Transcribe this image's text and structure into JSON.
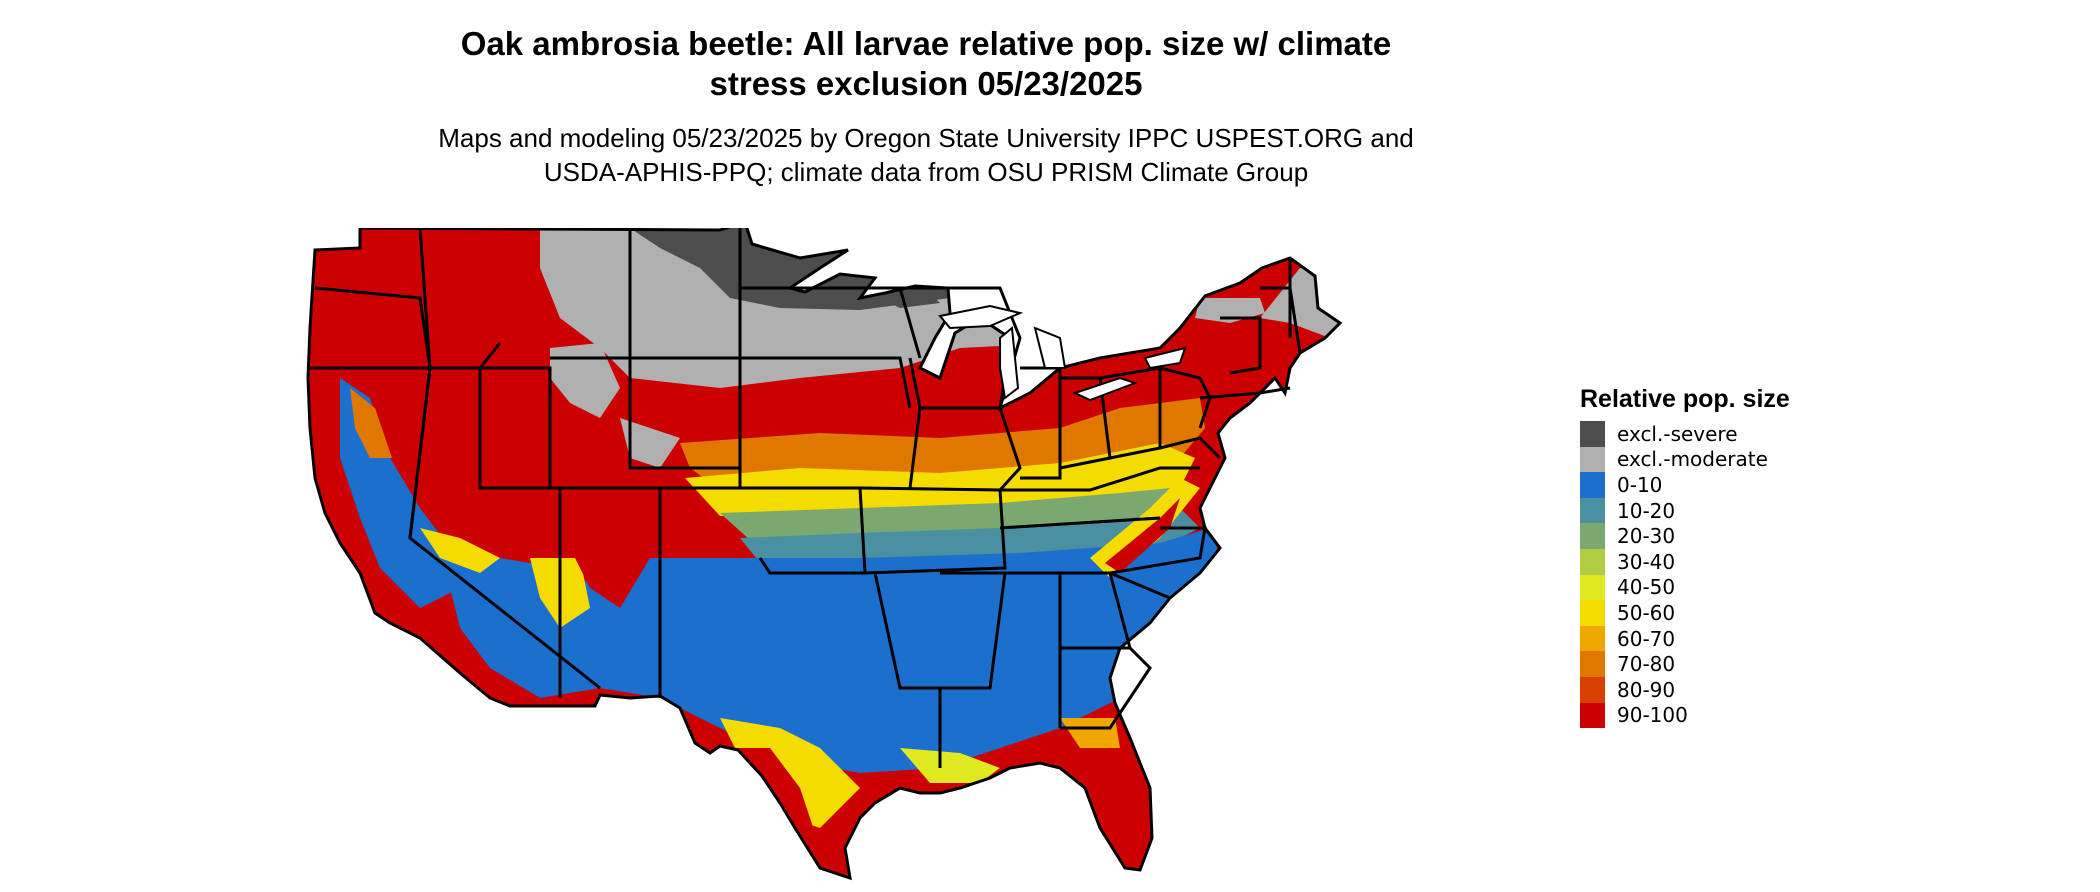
{
  "title_lines": [
    "Oak ambrosia beetle: All larvae relative pop. size w/ climate",
    "stress exclusion 05/23/2025"
  ],
  "subtitle_lines": [
    "Maps and modeling 05/23/2025 by Oregon State University IPPC USPEST.ORG and",
    "USDA-APHIS-PPQ; climate data from OSU PRISM Climate Group"
  ],
  "legend": {
    "title": "Relative pop. size",
    "items": [
      {
        "label": "excl.-severe",
        "color": "#4d4d4d"
      },
      {
        "label": "excl.-moderate",
        "color": "#b0b0b0"
      },
      {
        "label": "0-10",
        "color": "#1a70cc"
      },
      {
        "label": "10-20",
        "color": "#4a90a0"
      },
      {
        "label": "20-30",
        "color": "#7aa870"
      },
      {
        "label": "30-40",
        "color": "#b0cc40"
      },
      {
        "label": "40-50",
        "color": "#e0e820"
      },
      {
        "label": "50-60",
        "color": "#f5dc00"
      },
      {
        "label": "60-70",
        "color": "#f0a800"
      },
      {
        "label": "70-80",
        "color": "#e07800"
      },
      {
        "label": "80-90",
        "color": "#d84000"
      },
      {
        "label": "90-100",
        "color": "#cc0000"
      }
    ]
  },
  "map": {
    "region": "Contiguous United States",
    "boundaries_color": "#000000"
  }
}
